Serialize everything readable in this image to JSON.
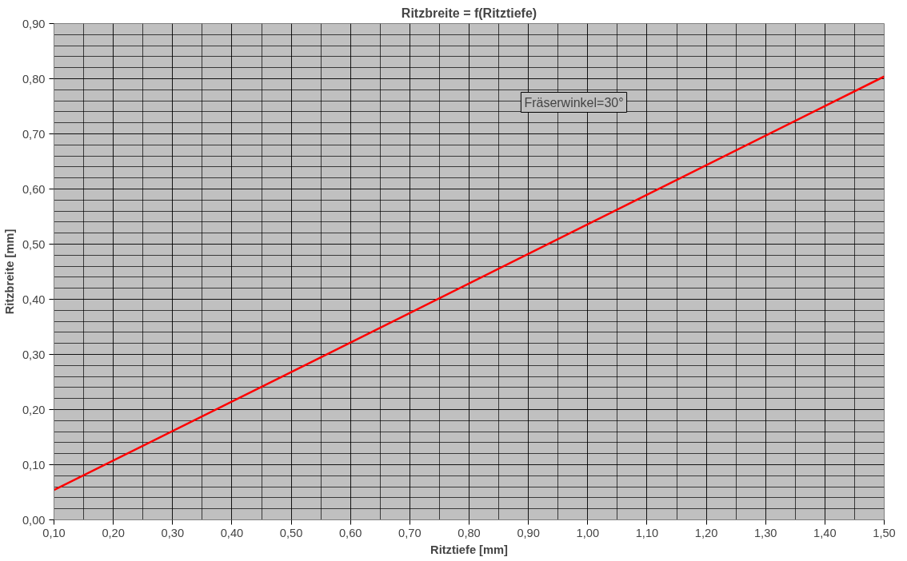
{
  "chart_data": {
    "type": "line",
    "title": "Ritzbreite = f(Ritztiefe)",
    "xlabel": "Ritztiefe [mm]",
    "ylabel": "Ritzbreite [mm]",
    "x": [
      0.1,
      0.5,
      1.0,
      1.5
    ],
    "series": [
      {
        "color": "#ff0000",
        "values": [
          0.054,
          0.268,
          0.536,
          0.804
        ]
      }
    ],
    "annotations": [
      "Fräserwinkel=30°"
    ],
    "xlim": [
      0.1,
      1.5
    ],
    "xticks": [
      {
        "value": 0.1,
        "label": "0,10"
      },
      {
        "value": 0.2,
        "label": "0,20"
      },
      {
        "value": 0.3,
        "label": "0,30"
      },
      {
        "value": 0.4,
        "label": "0,40"
      },
      {
        "value": 0.5,
        "label": "0,50"
      },
      {
        "value": 0.6,
        "label": "0,60"
      },
      {
        "value": 0.7,
        "label": "0,70"
      },
      {
        "value": 0.8,
        "label": "0,80"
      },
      {
        "value": 0.9,
        "label": "0,90"
      },
      {
        "value": 1.0,
        "label": "1,00"
      },
      {
        "value": 1.1,
        "label": "1,10"
      },
      {
        "value": 1.2,
        "label": "1,20"
      },
      {
        "value": 1.3,
        "label": "1,30"
      },
      {
        "value": 1.4,
        "label": "1,40"
      },
      {
        "value": 1.5,
        "label": "1,50"
      }
    ],
    "ylim": [
      0,
      0.9
    ],
    "yticks": [
      {
        "value": 0,
        "label": "0,00"
      },
      {
        "value": 0.1,
        "label": "0,10"
      },
      {
        "value": 0.2,
        "label": "0,20"
      },
      {
        "value": 0.3,
        "label": "0,30"
      },
      {
        "value": 0.4,
        "label": "0,40"
      },
      {
        "value": 0.5,
        "label": "0,50"
      },
      {
        "value": 0.6,
        "label": "0,60"
      },
      {
        "value": 0.7,
        "label": "0,70"
      },
      {
        "value": 0.8,
        "label": "0,80"
      },
      {
        "value": 0.9,
        "label": "0,90"
      }
    ],
    "grid": true,
    "marker": "none",
    "line_style": "solid"
  }
}
